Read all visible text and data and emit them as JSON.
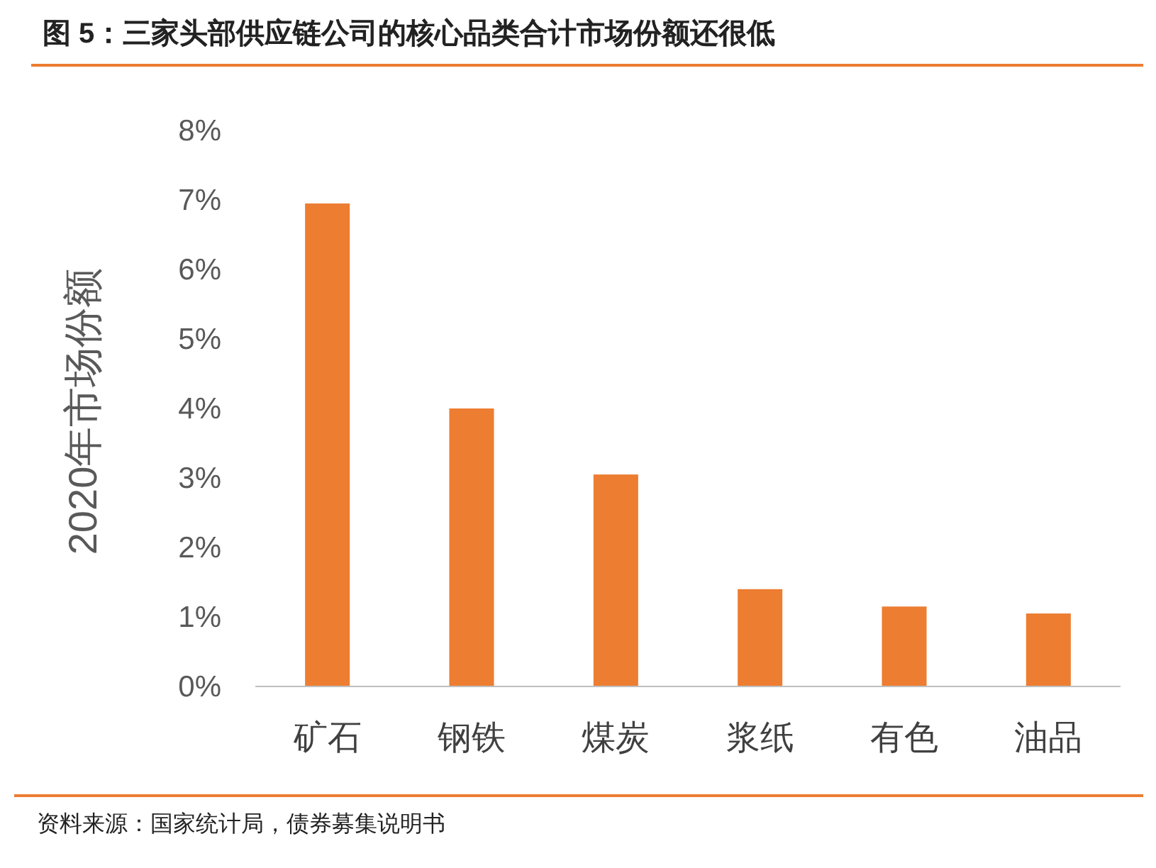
{
  "chart_data": {
    "type": "bar",
    "title": "图 5：三家头部供应链公司的核心品类合计市场份额还很低",
    "ylabel": "2020年市场份额",
    "categories": [
      "矿石",
      "钢铁",
      "煤炭",
      "浆纸",
      "有色",
      "油品"
    ],
    "values": [
      6.95,
      4.0,
      3.05,
      1.4,
      1.15,
      1.05
    ],
    "color": "#ed7d31",
    "ylim": [
      0,
      8
    ],
    "yticks": [
      {
        "value": 0,
        "label": "0%"
      },
      {
        "value": 1,
        "label": "1%"
      },
      {
        "value": 2,
        "label": "2%"
      },
      {
        "value": 3,
        "label": "3%"
      },
      {
        "value": 4,
        "label": "4%"
      },
      {
        "value": 5,
        "label": "5%"
      },
      {
        "value": 6,
        "label": "6%"
      },
      {
        "value": 7,
        "label": "7%"
      },
      {
        "value": 8,
        "label": "8%"
      }
    ],
    "annotations": [
      "资料来源：国家统计局，债券募集说明书"
    ]
  }
}
